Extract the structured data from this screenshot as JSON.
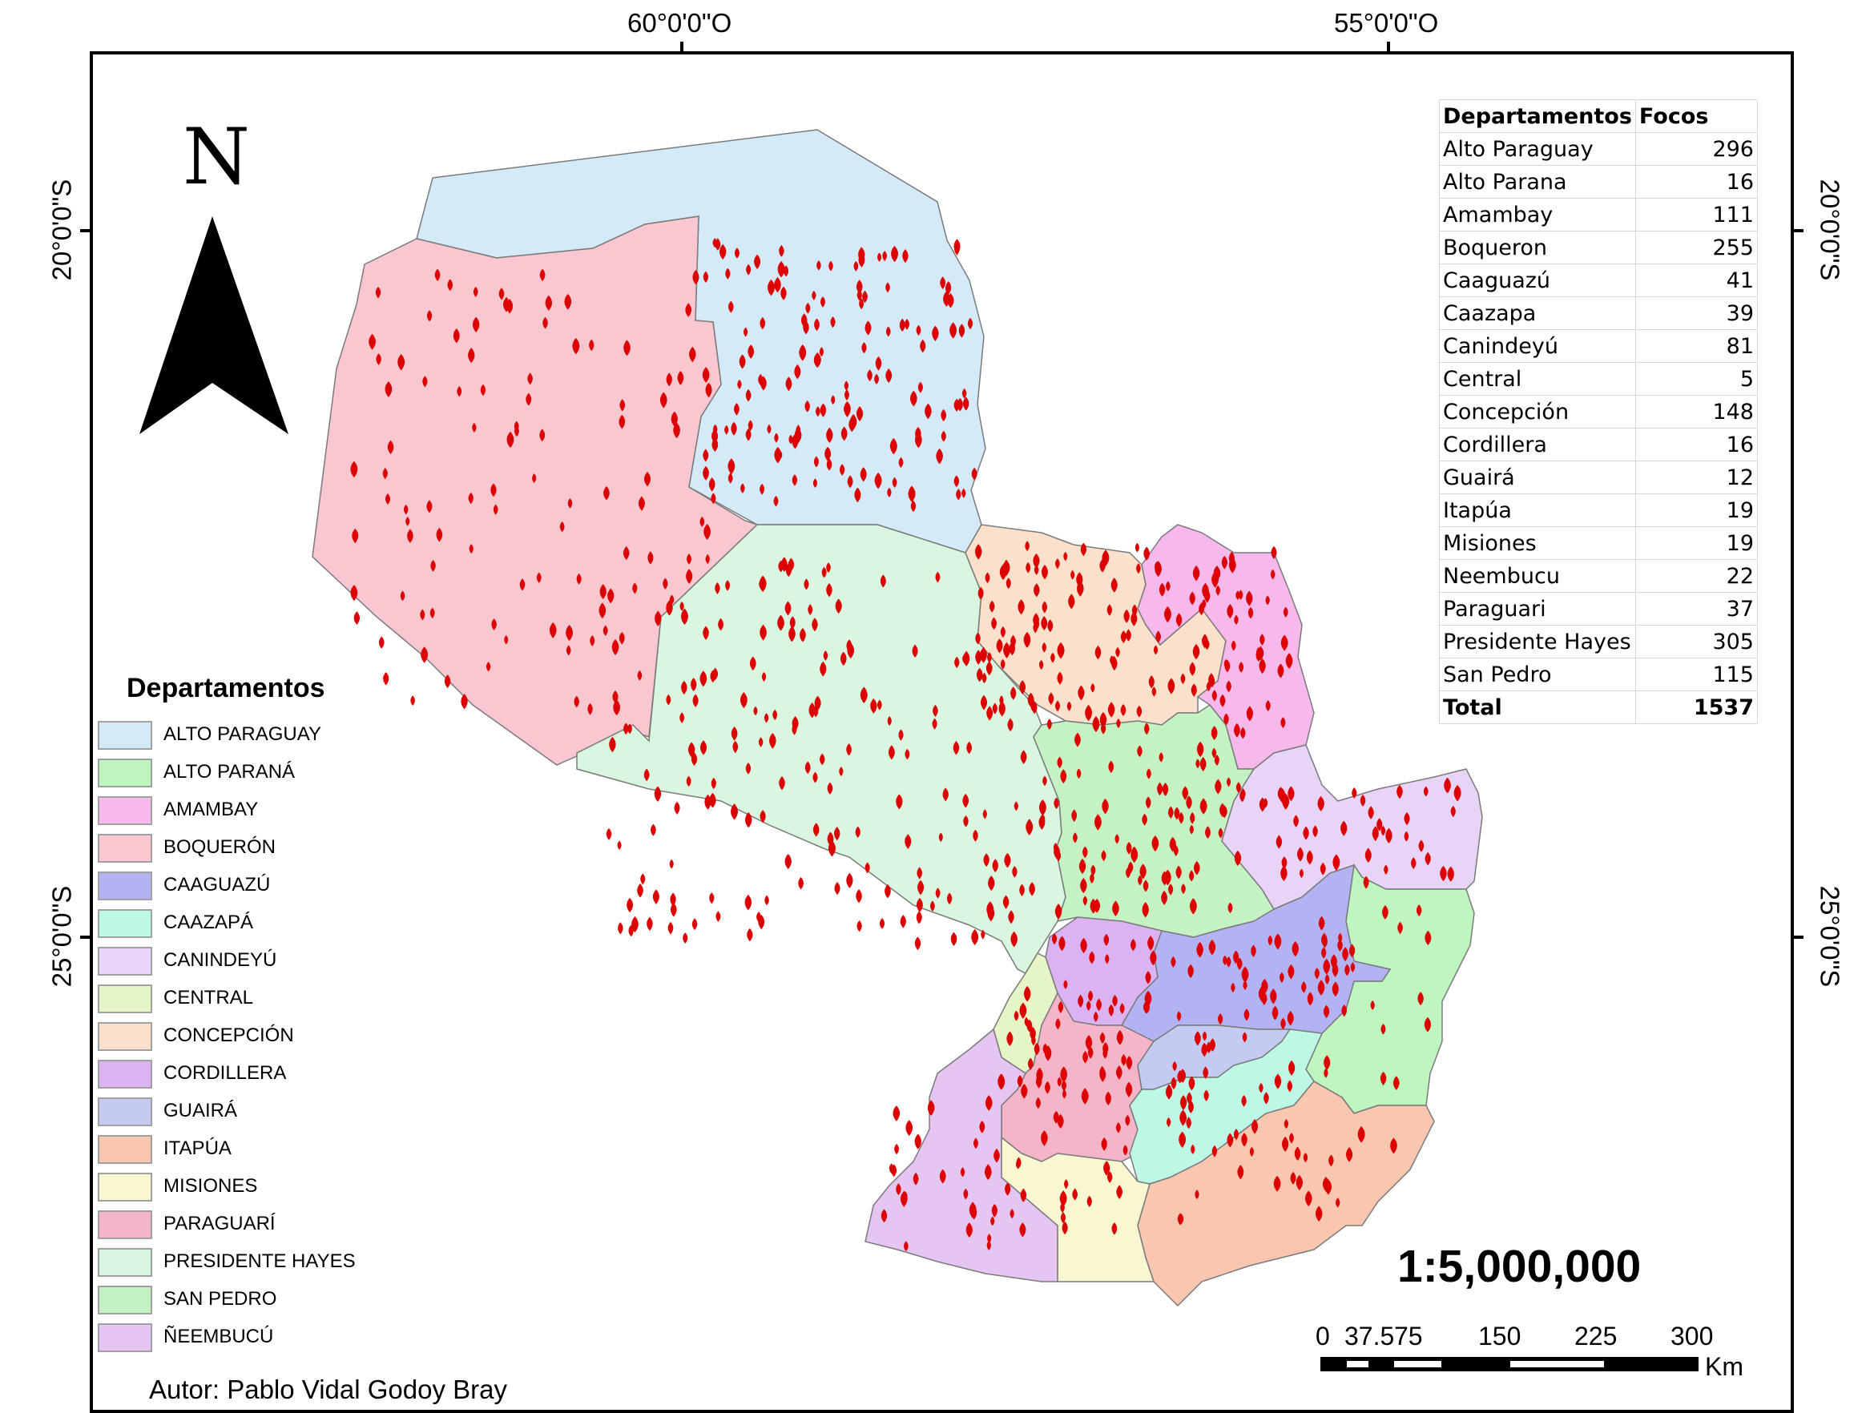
{
  "map": {
    "graticule": {
      "lon_labels": [
        "60°0'0\"O",
        "55°0'0\"O"
      ],
      "lat_labels": [
        "20°0'0\"S",
        "25°0'0\"S"
      ]
    },
    "north_arrow_label": "N",
    "scale_text": "1:5,000,000",
    "scale_bar": {
      "labels": [
        "0",
        "37.5",
        "75",
        "150",
        "225",
        "300"
      ],
      "unit": "Km"
    },
    "author_text": "Autor: Pablo Vidal Godoy Bray",
    "fire_color": "#dd0000",
    "boundary_color": "#7a7a7a"
  },
  "table": {
    "headers": [
      "Departamentos",
      "Focos"
    ],
    "rows": [
      {
        "name": "Alto Paraguay",
        "count": "296"
      },
      {
        "name": "Alto Parana",
        "count": "16"
      },
      {
        "name": "Amambay",
        "count": "111"
      },
      {
        "name": "Boqueron",
        "count": "255"
      },
      {
        "name": "Caaguazú",
        "count": "41"
      },
      {
        "name": "Caazapa",
        "count": "39"
      },
      {
        "name": "Canindeyú",
        "count": "81"
      },
      {
        "name": "Central",
        "count": "5"
      },
      {
        "name": "Concepción",
        "count": "148"
      },
      {
        "name": "Cordillera",
        "count": "16"
      },
      {
        "name": "Guairá",
        "count": "12"
      },
      {
        "name": "Itapúa",
        "count": "19"
      },
      {
        "name": "Misiones",
        "count": "19"
      },
      {
        "name": "Neembucu",
        "count": "22"
      },
      {
        "name": "Paraguari",
        "count": "37"
      },
      {
        "name": "Presidente Hayes",
        "count": "305"
      },
      {
        "name": "San Pedro",
        "count": "115"
      }
    ],
    "total": {
      "name": "Total",
      "count": "1537"
    }
  },
  "legend": {
    "title": "Departamentos",
    "items": [
      {
        "label": "ALTO PARAGUAY",
        "color": "#d4eaf8"
      },
      {
        "label": "ALTO PARANÁ",
        "color": "#bff5bf"
      },
      {
        "label": "AMAMBAY",
        "color": "#f7b8ec"
      },
      {
        "label": "BOQUERÓN",
        "color": "#f9c7d0"
      },
      {
        "label": "CAAGUAZÚ",
        "color": "#b3b3f4"
      },
      {
        "label": "CAAZAPÁ",
        "color": "#bdf7e5"
      },
      {
        "label": "CANINDEYÚ",
        "color": "#e8d4f6"
      },
      {
        "label": "CENTRAL",
        "color": "#e6f5c6"
      },
      {
        "label": "CONCEPCIÓN",
        "color": "#fbe1cc"
      },
      {
        "label": "CORDILLERA",
        "color": "#dbb3f2"
      },
      {
        "label": "GUAIRÁ",
        "color": "#c3cbf2"
      },
      {
        "label": "ITAPÚA",
        "color": "#f9c6b0"
      },
      {
        "label": "MISIONES",
        "color": "#f8f7d2"
      },
      {
        "label": "PARAGUARÍ",
        "color": "#f5b5c8"
      },
      {
        "label": "PRESIDENTE HAYES",
        "color": "#d8f6e0"
      },
      {
        "label": "SAN PEDRO",
        "color": "#c5f2c3"
      },
      {
        "label": "ÑEEMBUCÚ",
        "color": "#e5c5f2"
      }
    ]
  }
}
